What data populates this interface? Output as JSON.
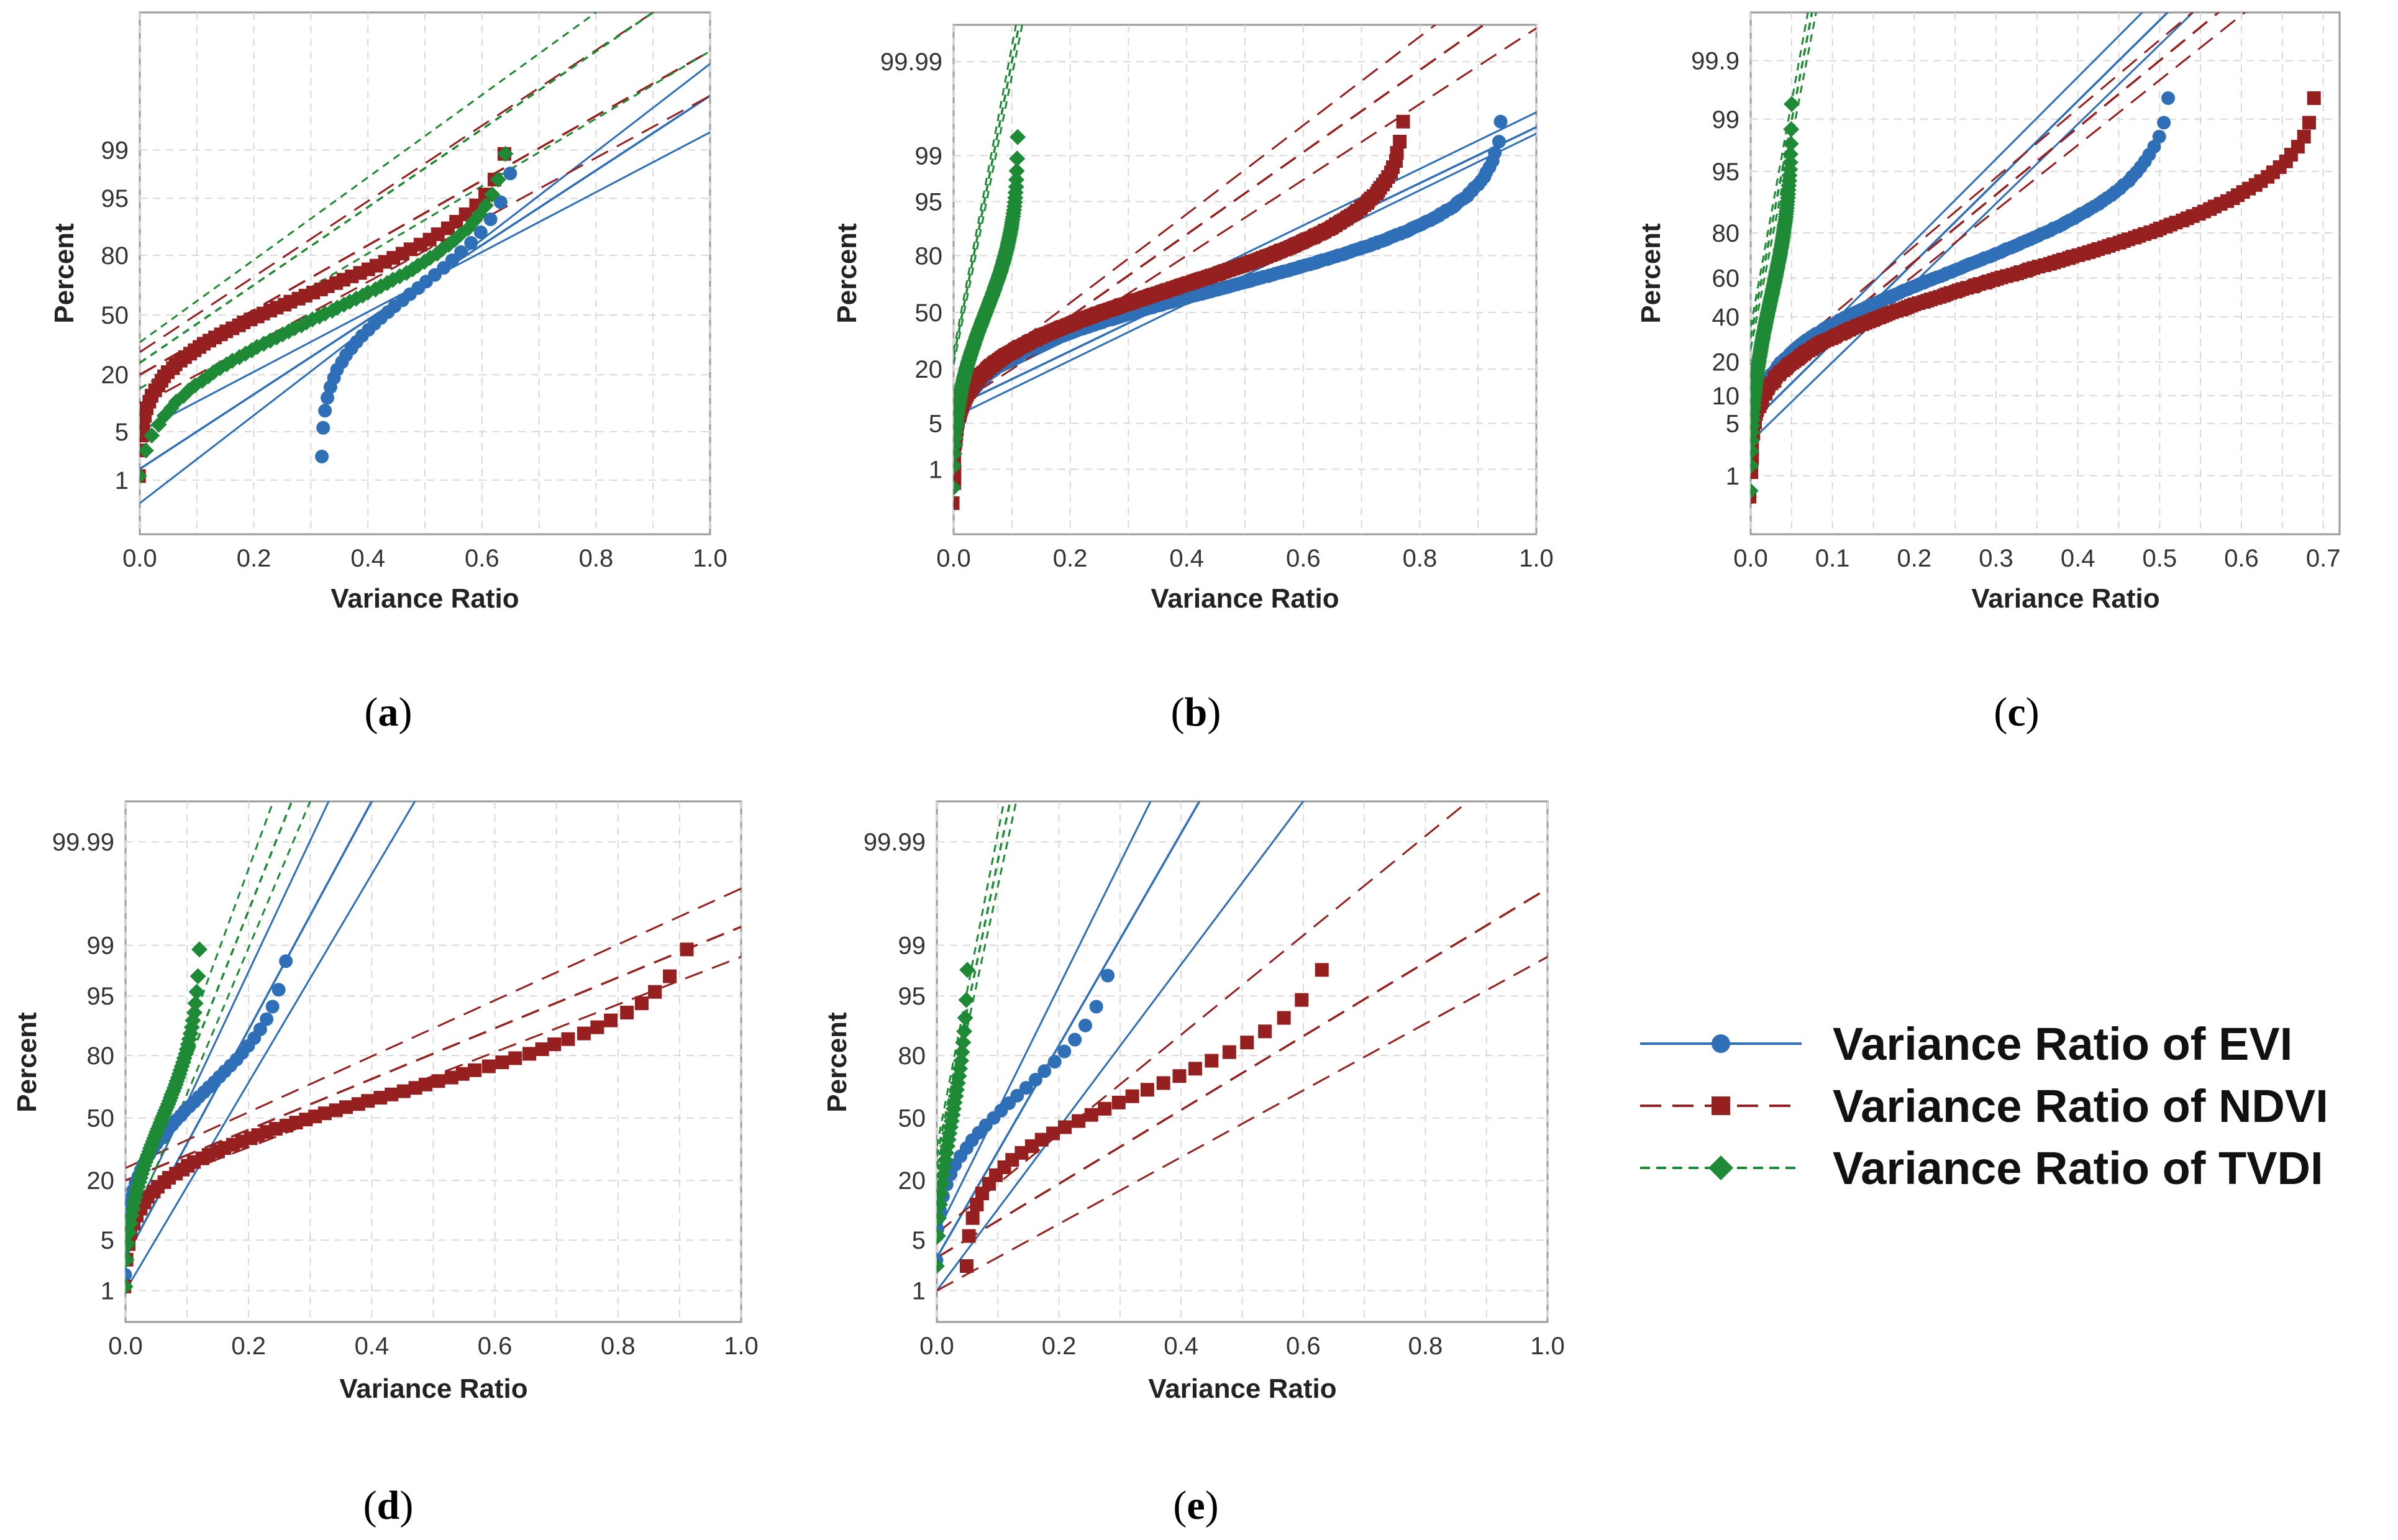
{
  "series_styles": [
    {
      "name": "EVI",
      "color": "#2e6fb7",
      "marker": "circle",
      "dash": "none"
    },
    {
      "name": "NDVI",
      "color": "#962020",
      "marker": "square",
      "dash": "long"
    },
    {
      "name": "TVDI",
      "color": "#1f8a35",
      "marker": "diamond",
      "dash": "short"
    }
  ],
  "legend": {
    "items": [
      "Variance Ratio of EVI",
      "Variance Ratio of NDVI",
      "Variance Ratio of TVDI"
    ]
  },
  "chart_data": [
    {
      "panel": "(a)",
      "type": "scatter",
      "subtype": "normal probability plot",
      "xlabel": "Variance Ratio",
      "ylabel": "Percent",
      "xlim": [
        0,
        1.0
      ],
      "ylim": [
        0.1,
        99.999
      ],
      "xticks": [
        "0.0",
        "0.2",
        "0.4",
        "0.6",
        "0.8",
        "1.0"
      ],
      "yticks": [
        "1",
        "5",
        "20",
        "50",
        "80",
        "95",
        "99"
      ],
      "series": [
        {
          "name": "EVI",
          "n": 30,
          "x_min": 0.32,
          "x_max": 0.65,
          "fit": [
            {
              "x": 0.0,
              "p": 1.5
            },
            {
              "x": 1.0,
              "p": 99.9
            }
          ],
          "band_lower": [
            {
              "x": 0.0,
              "p": 5.0
            },
            {
              "x": 1.0,
              "p": 99.5
            }
          ],
          "band_upper": [
            {
              "x": 0.0,
              "p": 0.4
            },
            {
              "x": 1.0,
              "p": 99.98
            }
          ]
        },
        {
          "name": "NDVI",
          "n": 60,
          "x_min": 0.0,
          "x_max": 0.64,
          "fit": [
            {
              "x": 0.0,
              "p": 20
            },
            {
              "x": 1.0,
              "p": 99.99
            }
          ],
          "band_lower": [
            {
              "x": 0.0,
              "p": 10
            },
            {
              "x": 1.0,
              "p": 99.9
            }
          ],
          "band_upper": [
            {
              "x": 0.0,
              "p": 30
            },
            {
              "x": 0.9,
              "p": 99.999
            }
          ]
        },
        {
          "name": "TVDI",
          "n": 60,
          "x_min": 0.0,
          "x_max": 0.64,
          "fit": [
            {
              "x": 0.0,
              "p": 25
            },
            {
              "x": 0.9,
              "p": 99.999
            }
          ],
          "band_lower": [
            {
              "x": 0.0,
              "p": 15
            },
            {
              "x": 1.0,
              "p": 99.99
            }
          ],
          "band_upper": [
            {
              "x": 0.0,
              "p": 35
            },
            {
              "x": 0.8,
              "p": 99.999
            }
          ]
        }
      ]
    },
    {
      "panel": "(b)",
      "type": "scatter",
      "subtype": "normal probability plot",
      "xlabel": "Variance Ratio",
      "ylabel": "Percent",
      "xlim": [
        0,
        1.0
      ],
      "ylim": [
        0.05,
        99.999
      ],
      "xticks": [
        "0.0",
        "0.2",
        "0.4",
        "0.6",
        "0.8",
        "1.0"
      ],
      "yticks": [
        "1",
        "5",
        "20",
        "50",
        "80",
        "95",
        "99",
        "99.99"
      ],
      "series": [
        {
          "name": "EVI",
          "n": 300,
          "x_min": 0.0,
          "x_max": 0.94,
          "fit": [
            {
              "x": 0.0,
              "p": 8
            },
            {
              "x": 1.0,
              "p": 99.7
            }
          ],
          "band_lower": [
            {
              "x": 0.0,
              "p": 6
            },
            {
              "x": 1.0,
              "p": 99.6
            }
          ],
          "band_upper": [
            {
              "x": 0.0,
              "p": 11
            },
            {
              "x": 1.0,
              "p": 99.85
            }
          ]
        },
        {
          "name": "NDVI",
          "n": 300,
          "x_min": 0.0,
          "x_max": 0.77,
          "fit": [
            {
              "x": 0.0,
              "p": 10
            },
            {
              "x": 0.75,
              "p": 99.95
            }
          ],
          "band_lower": [
            {
              "x": 0.0,
              "p": 8
            },
            {
              "x": 0.8,
              "p": 99.9
            }
          ],
          "band_upper": [
            {
              "x": 0.0,
              "p": 12
            },
            {
              "x": 0.7,
              "p": 99.97
            }
          ]
        },
        {
          "name": "TVDI",
          "n": 150,
          "x_min": 0.0,
          "x_max": 0.11,
          "fit": [
            {
              "x": 0.0,
              "p": 25
            },
            {
              "x": 0.1,
              "p": 99.99
            }
          ],
          "band_lower": [
            {
              "x": 0.0,
              "p": 22
            },
            {
              "x": 0.105,
              "p": 99.99
            }
          ],
          "band_upper": [
            {
              "x": 0.0,
              "p": 28
            },
            {
              "x": 0.095,
              "p": 99.99
            }
          ]
        }
      ]
    },
    {
      "panel": "(c)",
      "type": "scatter",
      "subtype": "normal probability plot",
      "xlabel": "Variance Ratio",
      "ylabel": "Percent",
      "xlim": [
        0,
        0.72
      ],
      "ylim": [
        0.1,
        99.99
      ],
      "xticks": [
        "0.0",
        "0.1",
        "0.2",
        "0.3",
        "0.4",
        "0.5",
        "0.6",
        "0.7"
      ],
      "yticks": [
        "1",
        "5",
        "10",
        "20",
        "40",
        "60",
        "80",
        "95",
        "99",
        "99.9"
      ],
      "series": [
        {
          "name": "EVI",
          "n": 150,
          "x_min": 0.0,
          "x_max": 0.51,
          "fit": [
            {
              "x": 0.0,
              "p": 5
            },
            {
              "x": 0.45,
              "p": 99.9
            }
          ],
          "band_lower": [
            {
              "x": 0.0,
              "p": 3
            },
            {
              "x": 0.48,
              "p": 99.9
            }
          ],
          "band_upper": [
            {
              "x": 0.0,
              "p": 8
            },
            {
              "x": 0.42,
              "p": 99.9
            }
          ]
        },
        {
          "name": "NDVI",
          "n": 150,
          "x_min": 0.0,
          "x_max": 0.69,
          "fit": [
            {
              "x": 0.0,
              "p": 10
            },
            {
              "x": 0.5,
              "p": 99.9
            }
          ],
          "band_lower": [
            {
              "x": 0.0,
              "p": 8
            },
            {
              "x": 0.53,
              "p": 99.9
            }
          ],
          "band_upper": [
            {
              "x": 0.0,
              "p": 13
            },
            {
              "x": 0.47,
              "p": 99.9
            }
          ]
        },
        {
          "name": "TVDI",
          "n": 120,
          "x_min": 0.0,
          "x_max": 0.05,
          "fit": [
            {
              "x": 0.0,
              "p": 30
            },
            {
              "x": 0.075,
              "p": 99.99
            }
          ],
          "band_lower": [
            {
              "x": 0.0,
              "p": 25
            },
            {
              "x": 0.08,
              "p": 99.99
            }
          ],
          "band_upper": [
            {
              "x": 0.0,
              "p": 35
            },
            {
              "x": 0.07,
              "p": 99.99
            }
          ]
        }
      ]
    },
    {
      "panel": "(d)",
      "type": "scatter",
      "subtype": "normal probability plot",
      "xlabel": "Variance Ratio",
      "ylabel": "Percent",
      "xlim": [
        0,
        1.0
      ],
      "ylim": [
        0.3,
        99.999
      ],
      "xticks": [
        "0.0",
        "0.2",
        "0.4",
        "0.6",
        "0.8",
        "1.0"
      ],
      "yticks": [
        "1",
        "5",
        "20",
        "50",
        "80",
        "95",
        "99",
        "99.99"
      ],
      "series": [
        {
          "name": "EVI",
          "n": 40,
          "x_min": 0.0,
          "x_max": 0.26,
          "fit": [
            {
              "x": 0.0,
              "p": 3
            },
            {
              "x": 0.4,
              "p": 99.999
            }
          ],
          "band_lower": [
            {
              "x": 0.0,
              "p": 1
            },
            {
              "x": 0.47,
              "p": 99.999
            }
          ],
          "band_upper": [
            {
              "x": 0.0,
              "p": 6
            },
            {
              "x": 0.33,
              "p": 99.999
            }
          ]
        },
        {
          "name": "NDVI",
          "n": 60,
          "x_min": 0.0,
          "x_max": 0.91,
          "fit": [
            {
              "x": 0.0,
              "p": 20
            },
            {
              "x": 1.0,
              "p": 99.5
            }
          ],
          "band_lower": [
            {
              "x": 0.0,
              "p": 15
            },
            {
              "x": 1.0,
              "p": 98.5
            }
          ],
          "band_upper": [
            {
              "x": 0.0,
              "p": 25
            },
            {
              "x": 1.0,
              "p": 99.9
            }
          ]
        },
        {
          "name": "TVDI",
          "n": 60,
          "x_min": 0.0,
          "x_max": 0.12,
          "fit": [
            {
              "x": 0.0,
              "p": 8
            },
            {
              "x": 0.27,
              "p": 99.999
            }
          ],
          "band_lower": [
            {
              "x": 0.0,
              "p": 5
            },
            {
              "x": 0.3,
              "p": 99.999
            }
          ],
          "band_upper": [
            {
              "x": 0.0,
              "p": 12
            },
            {
              "x": 0.24,
              "p": 99.999
            }
          ]
        }
      ]
    },
    {
      "panel": "(e)",
      "type": "scatter",
      "subtype": "normal probability plot",
      "xlabel": "Variance Ratio",
      "ylabel": "Percent",
      "xlim": [
        0,
        1.0
      ],
      "ylim": [
        0.3,
        99.999
      ],
      "xticks": [
        "0.0",
        "0.2",
        "0.4",
        "0.6",
        "0.8",
        "1.0"
      ],
      "yticks": [
        "1",
        "5",
        "20",
        "50",
        "80",
        "95",
        "99",
        "99.99"
      ],
      "series": [
        {
          "name": "EVI",
          "n": 25,
          "x_min": 0.0,
          "x_max": 0.28,
          "fit": [
            {
              "x": 0.0,
              "p": 3
            },
            {
              "x": 0.43,
              "p": 99.999
            }
          ],
          "band_lower": [
            {
              "x": 0.0,
              "p": 1
            },
            {
              "x": 0.6,
              "p": 99.999
            }
          ],
          "band_upper": [
            {
              "x": 0.0,
              "p": 6
            },
            {
              "x": 0.35,
              "p": 99.999
            }
          ]
        },
        {
          "name": "NDVI",
          "n": 30,
          "x_min": 0.05,
          "x_max": 0.63,
          "fit": [
            {
              "x": 0.0,
              "p": 3
            },
            {
              "x": 1.0,
              "p": 99.9
            }
          ],
          "band_lower": [
            {
              "x": 0.0,
              "p": 1
            },
            {
              "x": 1.0,
              "p": 98.5
            }
          ],
          "band_upper": [
            {
              "x": 0.0,
              "p": 6
            },
            {
              "x": 0.87,
              "p": 99.999
            }
          ]
        },
        {
          "name": "TVDI",
          "n": 30,
          "x_min": 0.0,
          "x_max": 0.05,
          "fit": [
            {
              "x": 0.0,
              "p": 30
            },
            {
              "x": 0.12,
              "p": 99.999
            }
          ],
          "band_lower": [
            {
              "x": 0.0,
              "p": 25
            },
            {
              "x": 0.13,
              "p": 99.999
            }
          ],
          "band_upper": [
            {
              "x": 0.0,
              "p": 35
            },
            {
              "x": 0.11,
              "p": 99.999
            }
          ]
        }
      ]
    }
  ]
}
